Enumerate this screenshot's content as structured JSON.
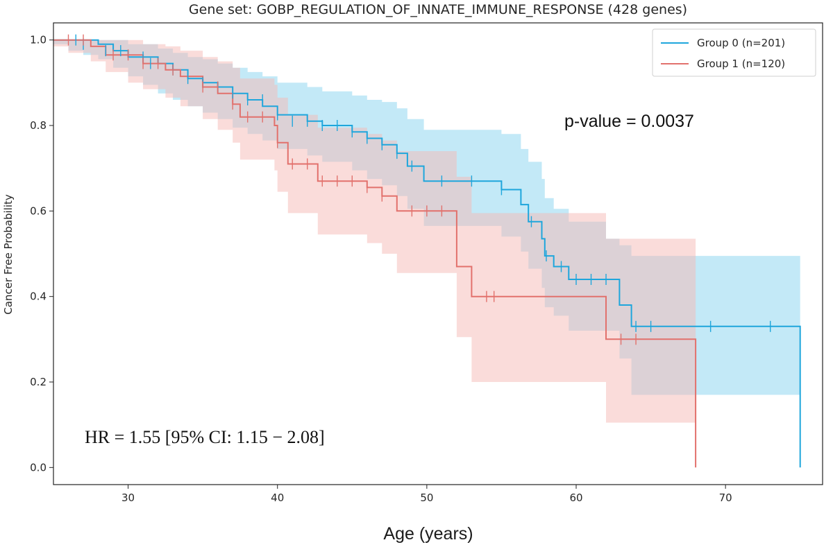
{
  "chart_data": {
    "type": "line",
    "subtype": "kaplan-meier",
    "title": "Gene set: GOBP_REGULATION_OF_INNATE_IMMUNE_RESPONSE (428 genes)",
    "xlabel": "Age (years)",
    "ylabel": "Cancer Free Probability",
    "xlim": [
      25,
      76.5
    ],
    "ylim": [
      -0.04,
      1.04
    ],
    "x_ticks": [
      30,
      40,
      50,
      60,
      70
    ],
    "y_ticks": [
      0.0,
      0.2,
      0.4,
      0.6,
      0.8,
      1.0
    ],
    "x_tick_labels": [
      "30",
      "40",
      "50",
      "60",
      "70"
    ],
    "y_tick_labels": [
      "0.0",
      "0.2",
      "0.4",
      "0.6",
      "0.8",
      "1.0"
    ],
    "legend_position": "top-right",
    "grid": false,
    "annotations": {
      "p_value": "p-value = 0.0037",
      "hr": "HR = 1.55 [95% CI: 1.15 − 2.08]"
    },
    "series": [
      {
        "name": "Group 0 (n=201)",
        "color": "#1ea6dc",
        "fill_color": "#87d3f0",
        "steps": [
          [
            25,
            1.0
          ],
          [
            28,
            0.99
          ],
          [
            29,
            0.975
          ],
          [
            30,
            0.96
          ],
          [
            32,
            0.945
          ],
          [
            33,
            0.93
          ],
          [
            34,
            0.91
          ],
          [
            35,
            0.9
          ],
          [
            36,
            0.89
          ],
          [
            37,
            0.875
          ],
          [
            38,
            0.86
          ],
          [
            39,
            0.845
          ],
          [
            40,
            0.825
          ],
          [
            42,
            0.81
          ],
          [
            43,
            0.8
          ],
          [
            45,
            0.785
          ],
          [
            46,
            0.77
          ],
          [
            47,
            0.755
          ],
          [
            48,
            0.735
          ],
          [
            48.7,
            0.705
          ],
          [
            49.8,
            0.67
          ],
          [
            55,
            0.65
          ],
          [
            56.3,
            0.615
          ],
          [
            56.8,
            0.575
          ],
          [
            57.7,
            0.535
          ],
          [
            57.9,
            0.495
          ],
          [
            58.5,
            0.47
          ],
          [
            59.5,
            0.44
          ],
          [
            62.9,
            0.38
          ],
          [
            63.7,
            0.33
          ],
          [
            75,
            0.33
          ],
          [
            75,
            0.0
          ]
        ],
        "ci_lower": [
          [
            25,
            0.99
          ],
          [
            26,
            0.975
          ],
          [
            27,
            0.965
          ],
          [
            28,
            0.955
          ],
          [
            29,
            0.935
          ],
          [
            30,
            0.915
          ],
          [
            31,
            0.895
          ],
          [
            32,
            0.875
          ],
          [
            33,
            0.86
          ],
          [
            34,
            0.845
          ],
          [
            35,
            0.83
          ],
          [
            36,
            0.815
          ],
          [
            37,
            0.795
          ],
          [
            38,
            0.78
          ],
          [
            39,
            0.765
          ],
          [
            40,
            0.745
          ],
          [
            42,
            0.73
          ],
          [
            43,
            0.715
          ],
          [
            45,
            0.695
          ],
          [
            46,
            0.675
          ],
          [
            47,
            0.66
          ],
          [
            48,
            0.635
          ],
          [
            48.7,
            0.605
          ],
          [
            49.8,
            0.565
          ],
          [
            55,
            0.54
          ],
          [
            56.3,
            0.505
          ],
          [
            56.8,
            0.465
          ],
          [
            57.7,
            0.42
          ],
          [
            57.9,
            0.375
          ],
          [
            58.5,
            0.355
          ],
          [
            59.5,
            0.32
          ],
          [
            62.9,
            0.255
          ],
          [
            63.7,
            0.17
          ],
          [
            75,
            0.17
          ]
        ],
        "ci_upper": [
          [
            25,
            1.0
          ],
          [
            29,
            1.0
          ],
          [
            30,
            0.99
          ],
          [
            32,
            0.98
          ],
          [
            33,
            0.97
          ],
          [
            34,
            0.96
          ],
          [
            35,
            0.955
          ],
          [
            36,
            0.945
          ],
          [
            37,
            0.935
          ],
          [
            38,
            0.925
          ],
          [
            39,
            0.915
          ],
          [
            40,
            0.9
          ],
          [
            42,
            0.89
          ],
          [
            43,
            0.88
          ],
          [
            45,
            0.87
          ],
          [
            46,
            0.86
          ],
          [
            47,
            0.855
          ],
          [
            48,
            0.84
          ],
          [
            48.7,
            0.815
          ],
          [
            49.8,
            0.79
          ],
          [
            55,
            0.78
          ],
          [
            56.3,
            0.745
          ],
          [
            56.8,
            0.715
          ],
          [
            57.7,
            0.675
          ],
          [
            57.9,
            0.63
          ],
          [
            58.5,
            0.605
          ],
          [
            59.5,
            0.575
          ],
          [
            62,
            0.535
          ],
          [
            62.9,
            0.52
          ],
          [
            63.7,
            0.495
          ],
          [
            75,
            0.495
          ]
        ],
        "censors": [
          [
            26.5,
            1.0
          ],
          [
            27,
            0.99
          ],
          [
            28.5,
            0.975
          ],
          [
            29.5,
            0.975
          ],
          [
            31,
            0.96
          ],
          [
            31.5,
            0.945
          ],
          [
            33,
            0.93
          ],
          [
            34,
            0.91
          ],
          [
            35,
            0.9
          ],
          [
            36,
            0.89
          ],
          [
            37,
            0.875
          ],
          [
            38,
            0.86
          ],
          [
            39,
            0.86
          ],
          [
            40,
            0.825
          ],
          [
            41,
            0.81
          ],
          [
            42,
            0.81
          ],
          [
            43,
            0.8
          ],
          [
            44,
            0.8
          ],
          [
            45,
            0.785
          ],
          [
            46,
            0.77
          ],
          [
            47,
            0.755
          ],
          [
            48,
            0.735
          ],
          [
            49,
            0.705
          ],
          [
            51,
            0.67
          ],
          [
            53,
            0.67
          ],
          [
            55,
            0.65
          ],
          [
            57,
            0.575
          ],
          [
            58,
            0.495
          ],
          [
            59,
            0.47
          ],
          [
            60,
            0.44
          ],
          [
            61,
            0.44
          ],
          [
            62,
            0.44
          ],
          [
            64,
            0.33
          ],
          [
            65,
            0.33
          ],
          [
            69,
            0.33
          ],
          [
            73,
            0.33
          ]
        ]
      },
      {
        "name": "Group 1 (n=120)",
        "color": "#e2716c",
        "fill_color": "#f5b9b6",
        "steps": [
          [
            25,
            1.0
          ],
          [
            27.5,
            0.985
          ],
          [
            28.5,
            0.965
          ],
          [
            31,
            0.945
          ],
          [
            32.5,
            0.93
          ],
          [
            33.5,
            0.915
          ],
          [
            35,
            0.89
          ],
          [
            36,
            0.875
          ],
          [
            37,
            0.85
          ],
          [
            37.5,
            0.82
          ],
          [
            39.8,
            0.8
          ],
          [
            40,
            0.76
          ],
          [
            40.7,
            0.71
          ],
          [
            42.7,
            0.67
          ],
          [
            46,
            0.655
          ],
          [
            47,
            0.635
          ],
          [
            48,
            0.6
          ],
          [
            52,
            0.6
          ],
          [
            52,
            0.47
          ],
          [
            53,
            0.4
          ],
          [
            62,
            0.4
          ],
          [
            62,
            0.3
          ],
          [
            68,
            0.3
          ],
          [
            68,
            0.0
          ]
        ],
        "ci_lower": [
          [
            25,
            0.985
          ],
          [
            26,
            0.97
          ],
          [
            27.5,
            0.95
          ],
          [
            28.5,
            0.925
          ],
          [
            30,
            0.9
          ],
          [
            31,
            0.885
          ],
          [
            32.5,
            0.865
          ],
          [
            33.5,
            0.845
          ],
          [
            35,
            0.815
          ],
          [
            36,
            0.79
          ],
          [
            37,
            0.76
          ],
          [
            37.5,
            0.72
          ],
          [
            39.8,
            0.695
          ],
          [
            40,
            0.645
          ],
          [
            40.7,
            0.595
          ],
          [
            42.7,
            0.545
          ],
          [
            46,
            0.525
          ],
          [
            47,
            0.5
          ],
          [
            48,
            0.455
          ],
          [
            52,
            0.4
          ],
          [
            52,
            0.305
          ],
          [
            53,
            0.2
          ],
          [
            62,
            0.105
          ],
          [
            68,
            0.105
          ]
        ],
        "ci_upper": [
          [
            25,
            1.0
          ],
          [
            28.5,
            1.0
          ],
          [
            31,
            0.99
          ],
          [
            32.5,
            0.985
          ],
          [
            33.5,
            0.975
          ],
          [
            35,
            0.96
          ],
          [
            36,
            0.95
          ],
          [
            37,
            0.935
          ],
          [
            37.5,
            0.91
          ],
          [
            39.8,
            0.895
          ],
          [
            40,
            0.865
          ],
          [
            40.7,
            0.825
          ],
          [
            42.7,
            0.795
          ],
          [
            46,
            0.78
          ],
          [
            47,
            0.765
          ],
          [
            48,
            0.74
          ],
          [
            52,
            0.68
          ],
          [
            53,
            0.595
          ],
          [
            59,
            0.595
          ],
          [
            62,
            0.575
          ],
          [
            62,
            0.535
          ],
          [
            68,
            0.535
          ]
        ],
        "censors": [
          [
            26,
            1.0
          ],
          [
            27,
            1.0
          ],
          [
            29,
            0.965
          ],
          [
            30,
            0.965
          ],
          [
            31,
            0.945
          ],
          [
            32,
            0.945
          ],
          [
            33,
            0.93
          ],
          [
            35,
            0.89
          ],
          [
            36,
            0.89
          ],
          [
            37,
            0.85
          ],
          [
            38,
            0.82
          ],
          [
            39,
            0.82
          ],
          [
            40,
            0.76
          ],
          [
            41,
            0.71
          ],
          [
            42,
            0.71
          ],
          [
            43,
            0.67
          ],
          [
            44,
            0.67
          ],
          [
            45,
            0.67
          ],
          [
            46,
            0.655
          ],
          [
            47,
            0.635
          ],
          [
            49,
            0.6
          ],
          [
            50,
            0.6
          ],
          [
            51,
            0.6
          ],
          [
            54,
            0.4
          ],
          [
            54.5,
            0.4
          ],
          [
            63,
            0.3
          ],
          [
            64,
            0.3
          ]
        ]
      }
    ]
  }
}
